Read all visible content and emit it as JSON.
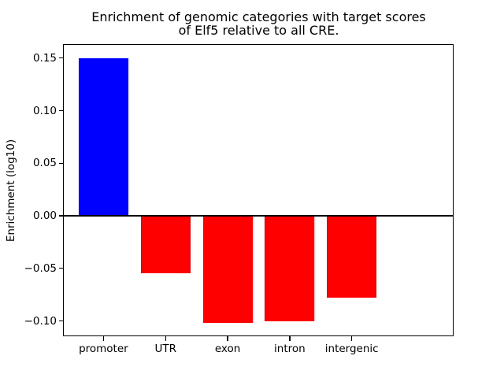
{
  "title": {
    "line1": "Enrichment of genomic categories with target scores",
    "line2": "of Elf5 relative to all CRE."
  },
  "chart_data": {
    "type": "bar",
    "title": "Enrichment of genomic categories with target scores\nof Elf5 relative to all CRE.",
    "categories": [
      "promoter",
      "UTR",
      "exon",
      "intron",
      "intergenic"
    ],
    "values": [
      0.15,
      -0.055,
      -0.102,
      -0.1,
      -0.078
    ],
    "xlabel": "",
    "ylabel": "Enrichment (log10)",
    "ylim": [
      -0.1146,
      0.1626
    ],
    "yticks": [
      0.15,
      0.1,
      0.05,
      0.0,
      -0.05,
      -0.1
    ],
    "positive_color": "#0000ff",
    "negative_color": "#ff0000",
    "bar_colors": [
      "#0000ff",
      "#ff0000",
      "#ff0000",
      "#ff0000",
      "#ff0000"
    ],
    "axis_color": "#000000",
    "background_color": "#ffffff",
    "zero_line": true,
    "grid": false,
    "legend": null
  }
}
